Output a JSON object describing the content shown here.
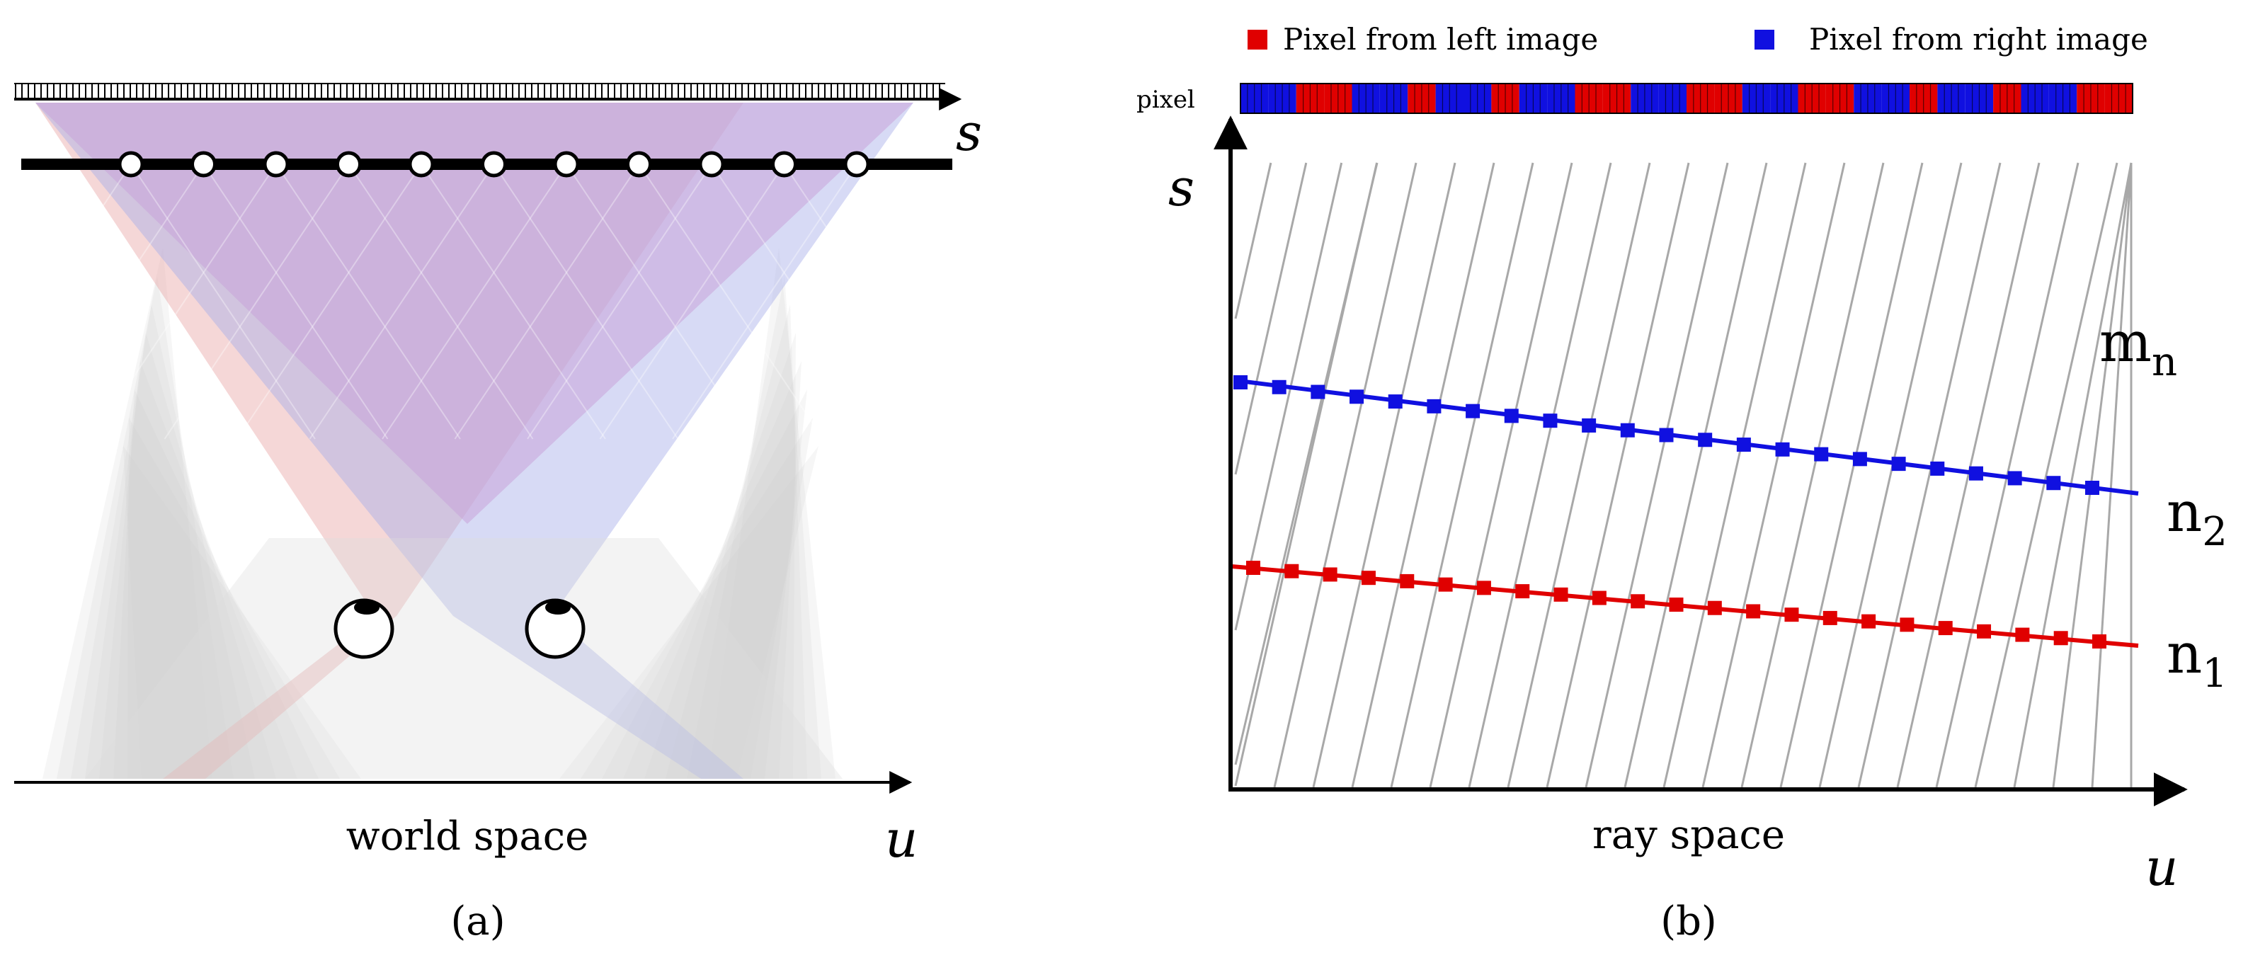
{
  "panel_a": {
    "axis_s_label": "s",
    "axis_u_label": "u",
    "caption": "world space",
    "panel_label": "(a)",
    "hole_count": 11,
    "eye_count": 2,
    "colors": {
      "left": "#e8a0a0",
      "right": "#a0a8e8",
      "overlap": "#c8a0d8",
      "ray": "#d8d8d8"
    }
  },
  "panel_b": {
    "legend": {
      "left_label": "Pixel from left image",
      "right_label": "Pixel from right image",
      "left_color": "#e00000",
      "right_color": "#1010e0"
    },
    "pixel_bar_label": "pixel",
    "pixel_bar_segments": [
      "B",
      "B",
      "R",
      "R",
      "B",
      "B",
      "R",
      "B",
      "B",
      "R",
      "B",
      "B",
      "R",
      "R",
      "B",
      "B",
      "R",
      "R",
      "B",
      "B",
      "R",
      "R",
      "B",
      "B",
      "R",
      "B",
      "B",
      "R",
      "B",
      "B",
      "R",
      "R"
    ],
    "axis_s_label": "s",
    "axis_u_label": "u",
    "caption": "ray space",
    "panel_label": "(b)",
    "label_mn": "m",
    "label_mn_sub": "n",
    "label_n2": "n",
    "label_n2_sub": "2",
    "label_n1": "n",
    "label_n1_sub": "1",
    "gray_line_count": 24,
    "blue_marker_count": 23,
    "red_marker_count": 23
  }
}
